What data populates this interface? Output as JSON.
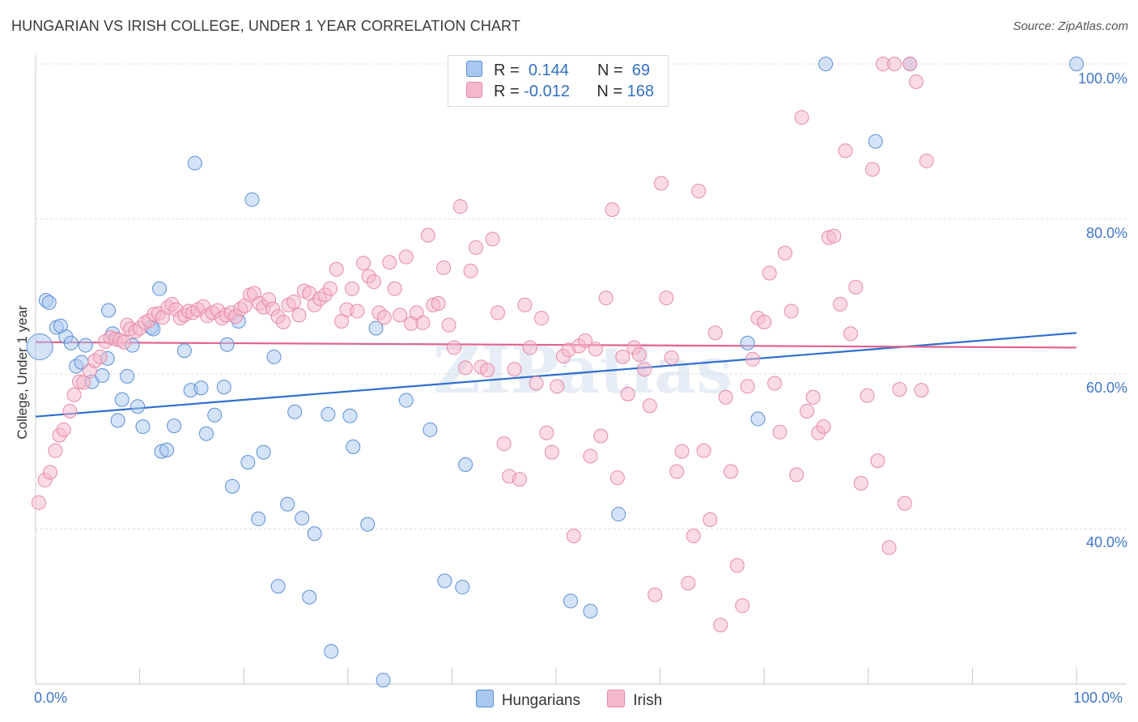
{
  "title": "HUNGARIAN VS IRISH COLLEGE, UNDER 1 YEAR CORRELATION CHART",
  "source": "Source: ZipAtlas.com",
  "watermark": "ZIPatlas",
  "legend": {
    "rows": [
      {
        "r_label": "R =",
        "r_value": "0.144",
        "n_label": "N =",
        "n_value": "69",
        "color": "#a9c8f0"
      },
      {
        "r_label": "R =",
        "r_value": "-0.012",
        "n_label": "N =",
        "n_value": "168",
        "color": "#f5b8cb"
      }
    ]
  },
  "bottom_legend": [
    {
      "label": "Hungarians",
      "color": "#a9c8f0"
    },
    {
      "label": "Irish",
      "color": "#f5b8cb"
    }
  ],
  "chart_data": {
    "type": "scatter",
    "title": "HUNGARIAN VS IRISH COLLEGE, UNDER 1 YEAR CORRELATION CHART",
    "xlabel": "",
    "ylabel": "College, Under 1 year",
    "xlim": [
      0,
      100
    ],
    "ylim": [
      20,
      100
    ],
    "x_tick_labels": [
      "0.0%",
      "100.0%"
    ],
    "y_ticks": [
      40,
      60,
      80,
      100
    ],
    "y_tick_labels": [
      "40.0%",
      "60.0%",
      "80.0%",
      "100.0%"
    ],
    "grid": true,
    "series": [
      {
        "name": "Hungarians",
        "color": "#5b8fd6",
        "fill": "#a9c8f0",
        "trend": {
          "x": [
            0,
            100
          ],
          "y": [
            54.5,
            65.3
          ],
          "color": "#2e6fce"
        },
        "points": [
          [
            0.4,
            63.5
          ],
          [
            1.0,
            69.5
          ],
          [
            1.3,
            69.2
          ],
          [
            2.0,
            66.0
          ],
          [
            2.4,
            66.2
          ],
          [
            2.9,
            64.8
          ],
          [
            3.4,
            64.0
          ],
          [
            3.9,
            61.0
          ],
          [
            4.4,
            61.5
          ],
          [
            4.8,
            63.7
          ],
          [
            5.4,
            59.0
          ],
          [
            6.4,
            59.8
          ],
          [
            6.9,
            62.0
          ],
          [
            7.0,
            68.2
          ],
          [
            7.4,
            65.2
          ],
          [
            7.9,
            54.0
          ],
          [
            8.3,
            56.7
          ],
          [
            8.8,
            59.7
          ],
          [
            9.3,
            63.7
          ],
          [
            9.8,
            55.8
          ],
          [
            10.3,
            53.2
          ],
          [
            11.1,
            66.0
          ],
          [
            11.3,
            65.8
          ],
          [
            11.9,
            71.0
          ],
          [
            12.1,
            50.0
          ],
          [
            12.6,
            50.2
          ],
          [
            13.3,
            53.3
          ],
          [
            14.3,
            63.0
          ],
          [
            14.9,
            57.9
          ],
          [
            15.3,
            87.2
          ],
          [
            15.9,
            58.2
          ],
          [
            16.4,
            52.3
          ],
          [
            17.2,
            54.7
          ],
          [
            18.1,
            58.3
          ],
          [
            18.4,
            63.8
          ],
          [
            18.9,
            45.5
          ],
          [
            19.5,
            66.8
          ],
          [
            20.4,
            48.6
          ],
          [
            20.8,
            82.5
          ],
          [
            21.4,
            41.3
          ],
          [
            21.9,
            49.9
          ],
          [
            22.9,
            62.2
          ],
          [
            23.3,
            32.6
          ],
          [
            24.2,
            43.2
          ],
          [
            24.9,
            55.1
          ],
          [
            25.6,
            41.4
          ],
          [
            26.3,
            31.2
          ],
          [
            26.8,
            39.4
          ],
          [
            28.1,
            54.8
          ],
          [
            28.4,
            24.2
          ],
          [
            30.2,
            54.6
          ],
          [
            30.5,
            50.6
          ],
          [
            31.9,
            40.6
          ],
          [
            32.7,
            65.9
          ],
          [
            33.4,
            20.5
          ],
          [
            35.6,
            56.6
          ],
          [
            37.9,
            52.8
          ],
          [
            39.3,
            33.3
          ],
          [
            41.0,
            32.5
          ],
          [
            41.3,
            48.3
          ],
          [
            51.4,
            30.7
          ],
          [
            53.3,
            29.4
          ],
          [
            56.0,
            41.9
          ],
          [
            68.4,
            64.0
          ],
          [
            69.4,
            54.2
          ],
          [
            75.9,
            100.0
          ],
          [
            80.7,
            90.0
          ],
          [
            84.0,
            100.0
          ],
          [
            100.0,
            100.0
          ]
        ]
      },
      {
        "name": "Irish",
        "color": "#e58aa7",
        "fill": "#f5b8cb",
        "trend": {
          "x": [
            0,
            100
          ],
          "y": [
            64.1,
            63.4
          ],
          "color": "#e2638e"
        },
        "points": [
          [
            0.3,
            43.4
          ],
          [
            0.9,
            46.3
          ],
          [
            1.4,
            47.3
          ],
          [
            1.9,
            50.1
          ],
          [
            2.3,
            52.1
          ],
          [
            2.7,
            52.8
          ],
          [
            3.3,
            55.2
          ],
          [
            3.7,
            57.3
          ],
          [
            4.2,
            59.0
          ],
          [
            4.6,
            58.9
          ],
          [
            5.2,
            60.4
          ],
          [
            5.7,
            61.7
          ],
          [
            6.2,
            62.2
          ],
          [
            6.7,
            64.2
          ],
          [
            7.2,
            64.7
          ],
          [
            7.7,
            64.5
          ],
          [
            8.1,
            64.4
          ],
          [
            8.5,
            64.1
          ],
          [
            8.8,
            66.3
          ],
          [
            9.1,
            65.8
          ],
          [
            9.6,
            65.5
          ],
          [
            10.0,
            65.9
          ],
          [
            10.5,
            66.6
          ],
          [
            10.9,
            66.9
          ],
          [
            11.4,
            67.7
          ],
          [
            11.8,
            67.8
          ],
          [
            12.2,
            67.3
          ],
          [
            12.7,
            68.6
          ],
          [
            13.1,
            69.0
          ],
          [
            13.5,
            68.3
          ],
          [
            13.9,
            67.2
          ],
          [
            14.3,
            67.6
          ],
          [
            14.7,
            68.1
          ],
          [
            15.1,
            67.9
          ],
          [
            15.6,
            68.3
          ],
          [
            16.1,
            68.7
          ],
          [
            16.5,
            67.5
          ],
          [
            17.0,
            67.9
          ],
          [
            17.5,
            68.2
          ],
          [
            17.9,
            67.2
          ],
          [
            18.3,
            67.6
          ],
          [
            18.8,
            67.9
          ],
          [
            19.2,
            67.4
          ],
          [
            19.7,
            68.4
          ],
          [
            20.1,
            68.8
          ],
          [
            20.6,
            70.2
          ],
          [
            21.0,
            70.4
          ],
          [
            21.5,
            69.1
          ],
          [
            21.9,
            68.6
          ],
          [
            22.4,
            69.6
          ],
          [
            22.8,
            68.4
          ],
          [
            23.3,
            67.4
          ],
          [
            23.8,
            66.7
          ],
          [
            24.3,
            68.9
          ],
          [
            24.8,
            69.3
          ],
          [
            25.3,
            67.6
          ],
          [
            25.8,
            70.7
          ],
          [
            26.3,
            70.4
          ],
          [
            26.8,
            68.9
          ],
          [
            27.3,
            69.7
          ],
          [
            27.8,
            70.2
          ],
          [
            28.3,
            71.0
          ],
          [
            28.9,
            73.5
          ],
          [
            29.4,
            66.8
          ],
          [
            29.9,
            68.3
          ],
          [
            30.4,
            71.0
          ],
          [
            30.9,
            68.1
          ],
          [
            31.5,
            74.3
          ],
          [
            32.0,
            72.6
          ],
          [
            32.5,
            71.9
          ],
          [
            33.0,
            67.9
          ],
          [
            33.5,
            67.3
          ],
          [
            34.0,
            74.4
          ],
          [
            34.5,
            71.0
          ],
          [
            35.0,
            67.6
          ],
          [
            35.6,
            75.1
          ],
          [
            36.1,
            66.5
          ],
          [
            36.6,
            67.9
          ],
          [
            37.2,
            66.6
          ],
          [
            37.7,
            77.9
          ],
          [
            38.2,
            68.9
          ],
          [
            38.7,
            69.1
          ],
          [
            39.2,
            73.7
          ],
          [
            39.7,
            66.3
          ],
          [
            40.2,
            63.4
          ],
          [
            40.8,
            81.6
          ],
          [
            41.3,
            60.8
          ],
          [
            41.8,
            73.3
          ],
          [
            42.3,
            76.3
          ],
          [
            42.8,
            60.9
          ],
          [
            43.4,
            60.5
          ],
          [
            43.9,
            77.4
          ],
          [
            44.4,
            67.9
          ],
          [
            45.0,
            51.0
          ],
          [
            45.5,
            46.8
          ],
          [
            46.0,
            60.6
          ],
          [
            46.5,
            46.4
          ],
          [
            47.0,
            68.9
          ],
          [
            47.5,
            63.4
          ],
          [
            48.1,
            58.8
          ],
          [
            48.6,
            67.2
          ],
          [
            49.1,
            52.4
          ],
          [
            49.6,
            49.9
          ],
          [
            50.1,
            58.4
          ],
          [
            50.7,
            62.3
          ],
          [
            51.2,
            63.1
          ],
          [
            51.7,
            39.1
          ],
          [
            52.2,
            63.6
          ],
          [
            52.8,
            64.3
          ],
          [
            53.3,
            49.4
          ],
          [
            53.8,
            63.2
          ],
          [
            54.3,
            52.0
          ],
          [
            54.8,
            69.8
          ],
          [
            55.4,
            81.2
          ],
          [
            55.9,
            46.6
          ],
          [
            56.4,
            62.2
          ],
          [
            56.9,
            57.4
          ],
          [
            57.5,
            63.4
          ],
          [
            58.0,
            62.5
          ],
          [
            58.5,
            60.6
          ],
          [
            59.0,
            55.9
          ],
          [
            59.5,
            31.5
          ],
          [
            60.1,
            84.6
          ],
          [
            60.6,
            69.8
          ],
          [
            61.1,
            62.1
          ],
          [
            61.6,
            47.4
          ],
          [
            62.1,
            50.0
          ],
          [
            62.7,
            33.0
          ],
          [
            63.2,
            39.1
          ],
          [
            63.7,
            83.6
          ],
          [
            64.2,
            50.1
          ],
          [
            64.8,
            41.2
          ],
          [
            65.3,
            65.3
          ],
          [
            65.8,
            27.6
          ],
          [
            66.3,
            57.0
          ],
          [
            66.8,
            47.4
          ],
          [
            67.4,
            35.3
          ],
          [
            67.9,
            30.1
          ],
          [
            68.4,
            58.4
          ],
          [
            68.9,
            61.9
          ],
          [
            69.4,
            67.2
          ],
          [
            70.0,
            66.7
          ],
          [
            70.5,
            73.0
          ],
          [
            71.0,
            58.8
          ],
          [
            71.5,
            52.5
          ],
          [
            72.0,
            75.6
          ],
          [
            72.6,
            68.1
          ],
          [
            73.1,
            47.0
          ],
          [
            73.6,
            93.1
          ],
          [
            74.1,
            55.2
          ],
          [
            74.7,
            57.0
          ],
          [
            75.2,
            52.4
          ],
          [
            75.7,
            53.2
          ],
          [
            76.2,
            77.6
          ],
          [
            76.7,
            77.8
          ],
          [
            77.3,
            69.0
          ],
          [
            77.8,
            88.8
          ],
          [
            78.3,
            65.2
          ],
          [
            78.8,
            71.2
          ],
          [
            79.3,
            45.9
          ],
          [
            79.9,
            57.2
          ],
          [
            80.4,
            86.4
          ],
          [
            80.9,
            48.8
          ],
          [
            81.4,
            100.0
          ],
          [
            82.0,
            37.6
          ],
          [
            82.5,
            100.0
          ],
          [
            83.0,
            58.0
          ],
          [
            83.5,
            43.3
          ],
          [
            84.0,
            100.0
          ],
          [
            84.6,
            97.7
          ],
          [
            85.1,
            57.9
          ],
          [
            85.6,
            87.5
          ]
        ]
      }
    ]
  }
}
